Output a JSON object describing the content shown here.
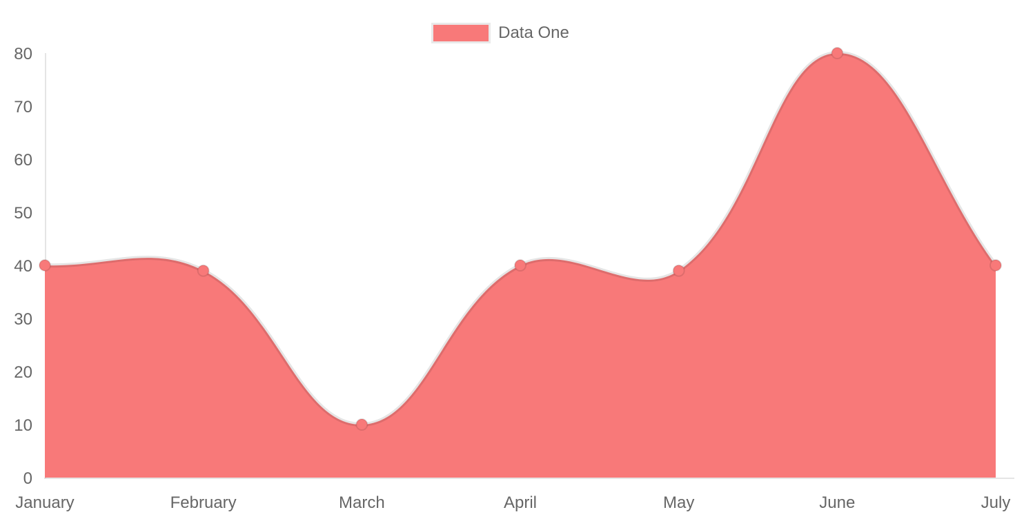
{
  "chart_data": {
    "type": "area",
    "title": "",
    "categories": [
      "January",
      "February",
      "March",
      "April",
      "May",
      "June",
      "July"
    ],
    "series": [
      {
        "name": "Data One",
        "values": [
          40,
          39,
          10,
          40,
          39,
          80,
          40
        ],
        "fill_color": "#f87979",
        "line_color": "rgba(0,0,0,0.1)",
        "point_color": "#f87979"
      }
    ],
    "xlabel": "",
    "ylabel": "",
    "ylim": [
      0,
      80
    ],
    "y_ticks": [
      0,
      10,
      20,
      30,
      40,
      50,
      60,
      70,
      80
    ],
    "grid": false,
    "smooth_tension": 0.4,
    "legend_position": "top",
    "tick_color": "#666666",
    "axis_color": "rgba(0,0,0,0.1)",
    "legend_swatch_border_color": "#e9e9e9",
    "background_color": "#ffffff"
  }
}
